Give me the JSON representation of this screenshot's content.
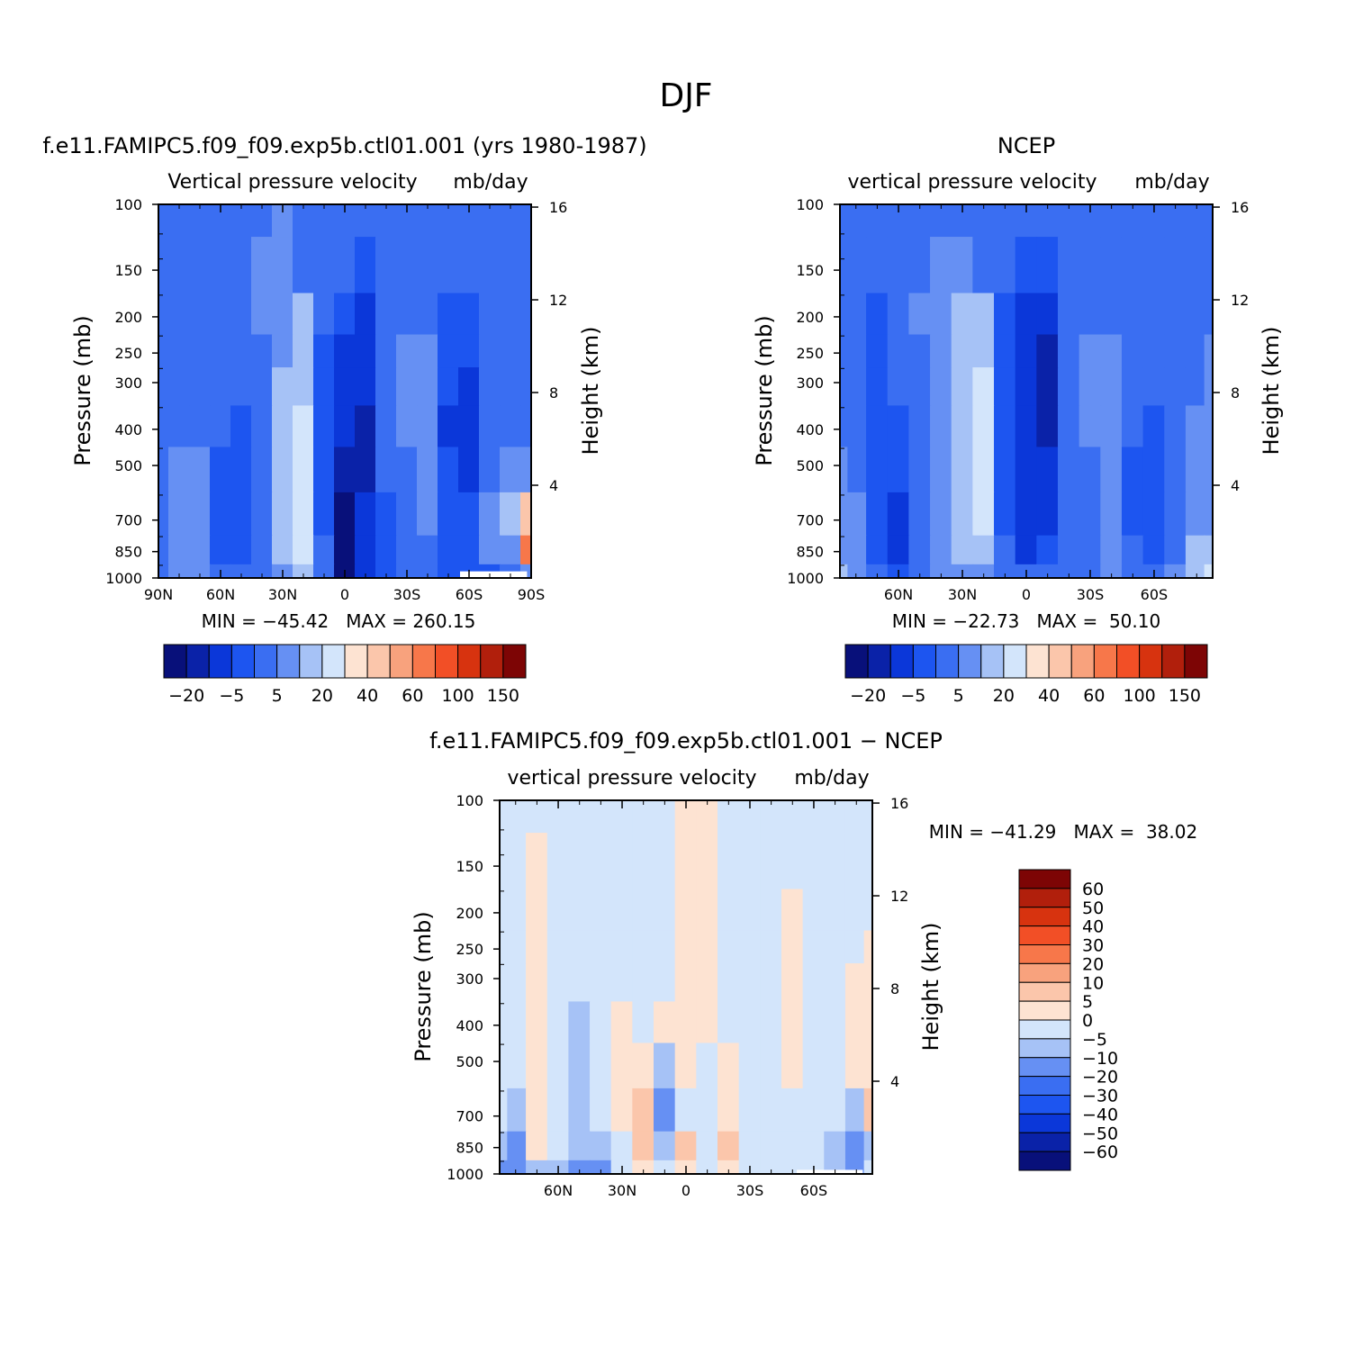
{
  "page_title": "DJF",
  "colors": {
    "model_obs_scale": [
      "#08107a",
      "#0a22a8",
      "#0b37d9",
      "#1d55f0",
      "#3a6ef2",
      "#6690f3",
      "#a6c2f6",
      "#d3e5fb",
      "#fde3d2",
      "#fbc6ab",
      "#f8a27d",
      "#f7774a",
      "#f24f26",
      "#d7330f",
      "#b11f0c",
      "#7d0505"
    ],
    "diff_scale": [
      "#08107a",
      "#0a22a8",
      "#0b37d9",
      "#1d55f0",
      "#3a6ef2",
      "#6690f3",
      "#a6c2f6",
      "#d3e5fb",
      "#fde3d2",
      "#fbc6ab",
      "#f8a27d",
      "#f7774a",
      "#f24f26",
      "#d7330f",
      "#b11f0c",
      "#7d0505"
    ],
    "missing": "#ffffff"
  },
  "chart_data": [
    {
      "type": "heatmap",
      "panel": "model",
      "title": "f.e11.FAMIPC5.f09_f09.exp5b.ctl01.001 (yrs 1980-1987)",
      "variable": "Vertical pressure velocity",
      "units": "mb/day",
      "ylabel": "Pressure (mb)",
      "ylabel_right": "Height (km)",
      "y_ticks": [
        "100",
        "150",
        "200",
        "250",
        "300",
        "400",
        "500",
        "700",
        "850",
        "1000"
      ],
      "y_right_ticks": [
        "16",
        "12",
        "8",
        "4"
      ],
      "x_ticks": [
        "90N",
        "60N",
        "30N",
        "0",
        "30S",
        "60S",
        "90S"
      ],
      "stats": "MIN = -45.42   MAX = 260.15",
      "colorbar_labels": [
        "-20",
        "-5",
        "5",
        "20",
        "40",
        "60",
        "100",
        "150"
      ],
      "contour_levels": [
        -30,
        -25,
        -20,
        -15,
        -10,
        -5,
        0,
        5,
        10,
        20,
        30,
        40,
        50,
        60,
        80,
        100,
        120,
        150
      ],
      "lat": [
        90,
        80,
        70,
        60,
        50,
        40,
        30,
        20,
        10,
        0,
        -10,
        -20,
        -30,
        -40,
        -50,
        -60,
        -70,
        -80,
        -90
      ],
      "pressure": [
        100,
        150,
        200,
        250,
        300,
        400,
        500,
        700,
        850,
        1000
      ],
      "values": [
        [
          -8,
          -8,
          -8,
          -8,
          -6,
          -6,
          -5,
          -8,
          -8,
          -8,
          -10,
          -9,
          -8,
          -9,
          -10,
          -10,
          -9,
          -8,
          -8
        ],
        [
          -9,
          -9,
          -8,
          -8,
          -6,
          -5,
          -4,
          -6,
          -8,
          -9,
          -12,
          -10,
          -8,
          -8,
          -10,
          -10,
          -9,
          -8,
          -8
        ],
        [
          -10,
          -10,
          -8,
          -7,
          -6,
          -5,
          -2,
          1,
          -10,
          -14,
          -16,
          -10,
          -6,
          -6,
          -12,
          -12,
          -9,
          -8,
          -8
        ],
        [
          -10,
          -10,
          -9,
          -8,
          -7,
          -8,
          -1,
          3,
          -12,
          -16,
          -18,
          -10,
          -4,
          -3,
          -12,
          -14,
          -10,
          -8,
          -8
        ],
        [
          -10,
          -10,
          -9,
          -9,
          -10,
          -9,
          0,
          4,
          -13,
          -18,
          -20,
          -10,
          -4,
          -2,
          -14,
          -16,
          -10,
          -8,
          -7
        ],
        [
          -9,
          -9,
          -9,
          -10,
          -12,
          -9,
          1,
          6,
          -14,
          -20,
          -22,
          -10,
          -5,
          -3,
          -16,
          -18,
          -9,
          -6,
          -6
        ],
        [
          -7,
          -5,
          -5,
          -11,
          -13,
          -8,
          2,
          7,
          -13,
          -24,
          -22,
          -10,
          -6,
          -4,
          -14,
          -16,
          -6,
          -4,
          -4
        ],
        [
          -6,
          -2,
          -2,
          -12,
          -14,
          -6,
          3,
          8,
          -14,
          -32,
          -20,
          -12,
          -7,
          -5,
          -13,
          -14,
          -4,
          0,
          20
        ],
        [
          -7,
          -3,
          -3,
          -12,
          -12,
          -7,
          1,
          6,
          -10,
          -38,
          -18,
          -15,
          -9,
          -7,
          -13,
          -14,
          -5,
          -4,
          40
        ],
        [
          -6,
          -4,
          -4,
          -10,
          -10,
          -8,
          -4,
          2,
          -8,
          -32,
          -20,
          -14,
          -10,
          -9,
          -12,
          -12,
          -12,
          -6,
          -4
        ]
      ],
      "missing_region": "approx 60S-90S, 1000-850 mb (partial)"
    },
    {
      "type": "heatmap",
      "panel": "observation",
      "title": "NCEP",
      "variable": "vertical pressure velocity",
      "units": "mb/day",
      "ylabel": "Pressure (mb)",
      "ylabel_right": "Height (km)",
      "y_ticks": [
        "100",
        "150",
        "200",
        "250",
        "300",
        "400",
        "500",
        "700",
        "850",
        "1000"
      ],
      "y_right_ticks": [
        "16",
        "12",
        "8",
        "4"
      ],
      "x_ticks": [
        "60N",
        "30N",
        "0",
        "30S",
        "60S"
      ],
      "stats": "MIN = -22.73   MAX =  50.10",
      "colorbar_labels": [
        "-20",
        "-5",
        "5",
        "20",
        "40",
        "60",
        "100",
        "150"
      ],
      "lat": [
        87.5,
        80,
        70,
        60,
        50,
        40,
        30,
        20,
        10,
        0,
        -10,
        -20,
        -30,
        -40,
        -50,
        -60,
        -70,
        -80,
        -87.5
      ],
      "pressure": [
        100,
        150,
        200,
        250,
        300,
        400,
        500,
        700,
        850,
        1000
      ],
      "values": [
        [
          -8,
          -8,
          -8,
          -8,
          -8,
          -8,
          -8,
          -8,
          -8,
          -8,
          -8,
          -8,
          -8,
          -8,
          -8,
          -8,
          -8,
          -8,
          -8
        ],
        [
          -8,
          -9,
          -10,
          -8,
          -6,
          -5,
          -3,
          -8,
          -10,
          -11,
          -14,
          -9,
          -7,
          -8,
          -8,
          -8,
          -8,
          -8,
          -8
        ],
        [
          -8,
          -10,
          -12,
          -8,
          -5,
          -4,
          0,
          3,
          -12,
          -16,
          -20,
          -10,
          -6,
          -6,
          -8,
          -8,
          -8,
          -6,
          -6
        ],
        [
          -8,
          -10,
          -13,
          -9,
          -6,
          -5,
          1,
          4,
          -14,
          -18,
          -22,
          -10,
          -5,
          -4,
          -8,
          -9,
          -8,
          -6,
          -5
        ],
        [
          -8,
          -10,
          -14,
          -10,
          -7,
          -5,
          2,
          5,
          -14,
          -18,
          -22,
          -10,
          -5,
          -3,
          -8,
          -10,
          -8,
          -6,
          -5
        ],
        [
          -6,
          -10,
          -14,
          -12,
          -8,
          -5,
          2,
          6,
          -12,
          -18,
          -22,
          -10,
          -5,
          -3,
          -10,
          -12,
          -8,
          -5,
          -4
        ],
        [
          -4,
          -8,
          -14,
          -14,
          -9,
          -5,
          2,
          7,
          -12,
          -18,
          -20,
          -10,
          -6,
          -4,
          -11,
          -13,
          -8,
          -4,
          -3
        ],
        [
          -3,
          -5,
          -14,
          -16,
          -9,
          -4,
          2,
          7,
          -12,
          -18,
          -18,
          -10,
          -6,
          -4,
          -11,
          -14,
          -8,
          -3,
          -2
        ],
        [
          -2,
          -4,
          -12,
          -16,
          -8,
          -4,
          0,
          4,
          -10,
          -20,
          -14,
          -8,
          -6,
          -4,
          -10,
          -12,
          -6,
          0,
          3
        ],
        [
          2,
          -3,
          -8,
          -12,
          -6,
          -4,
          -5,
          -3,
          -6,
          -10,
          -10,
          -8,
          -6,
          -4,
          -8,
          -10,
          -5,
          2,
          5
        ]
      ]
    },
    {
      "type": "heatmap",
      "panel": "difference",
      "title": "f.e11.FAMIPC5.f09_f09.exp5b.ctl01.001 - NCEP",
      "variable": "vertical pressure velocity",
      "units": "mb/day",
      "ylabel": "Pressure (mb)",
      "ylabel_right": "Height (km)",
      "y_ticks": [
        "100",
        "150",
        "200",
        "250",
        "300",
        "400",
        "500",
        "700",
        "850",
        "1000"
      ],
      "y_right_ticks": [
        "16",
        "12",
        "8",
        "4"
      ],
      "x_ticks": [
        "60N",
        "30N",
        "0",
        "30S",
        "60S"
      ],
      "stats": "MIN = -41.29   MAX =  38.02",
      "colorbar_labels": [
        "60",
        "50",
        "40",
        "30",
        "20",
        "10",
        "5",
        "0",
        "-5",
        "-10",
        "-20",
        "-30",
        "-40",
        "-50",
        "-60"
      ],
      "contour_levels": [
        -60,
        -50,
        -40,
        -30,
        -20,
        -10,
        -5,
        0,
        5,
        10,
        20,
        30,
        40,
        50,
        60
      ],
      "lat": [
        87.5,
        80,
        70,
        60,
        50,
        40,
        30,
        20,
        10,
        0,
        -10,
        -20,
        -30,
        -40,
        -50,
        -60,
        -70,
        -80,
        -87.5
      ],
      "pressure": [
        100,
        150,
        200,
        250,
        300,
        400,
        500,
        700,
        850,
        1000
      ],
      "values": [
        [
          -2,
          -2,
          -2,
          -2,
          -2,
          -2,
          -2,
          -2,
          -2,
          2,
          2,
          -2,
          -2,
          -2,
          -2,
          -2,
          -2,
          -2,
          -2
        ],
        [
          -2,
          -2,
          2,
          -2,
          -2,
          -2,
          -2,
          -2,
          -3,
          2,
          2,
          -2,
          -2,
          -2,
          -2,
          -2,
          -2,
          -2,
          -2
        ],
        [
          -2,
          -2,
          2,
          -2,
          -2,
          -2,
          -2,
          -2,
          -2,
          2,
          2,
          -2,
          -2,
          -2,
          2,
          -2,
          -2,
          -2,
          -2
        ],
        [
          -2,
          -2,
          2,
          -2,
          -3,
          -2,
          -2,
          -2,
          -2,
          2,
          2,
          -2,
          -2,
          -2,
          2,
          -2,
          -2,
          -2,
          2
        ],
        [
          -2,
          -2,
          2,
          -2,
          -4,
          -2,
          -2,
          -2,
          -2,
          2,
          2,
          -2,
          -2,
          -2,
          2,
          -2,
          -2,
          2,
          2
        ],
        [
          -2,
          -2,
          2,
          -2,
          -6,
          -3,
          2,
          -2,
          2,
          2,
          2,
          -2,
          -2,
          -2,
          2,
          -2,
          -2,
          2,
          2
        ],
        [
          -2,
          -2,
          2,
          -2,
          -7,
          -4,
          2,
          2,
          -6,
          2,
          -2,
          2,
          -2,
          -2,
          2,
          -2,
          -2,
          2,
          2
        ],
        [
          -3,
          -6,
          2,
          -2,
          -8,
          -5,
          4,
          6,
          -12,
          -3,
          -2,
          4,
          -2,
          -2,
          -2,
          -2,
          -4,
          -6,
          6
        ],
        [
          -10,
          -14,
          2,
          -4,
          -10,
          -8,
          -2,
          8,
          -6,
          6,
          -3,
          6,
          -2,
          -2,
          -2,
          -2,
          -10,
          -14,
          -6
        ],
        [
          -14,
          -18,
          -6,
          -10,
          -12,
          -16,
          -2,
          2,
          -3,
          2,
          -2,
          2,
          -2,
          -2,
          -2,
          -2,
          -6,
          -14,
          -4
        ]
      ],
      "missing_region": "approx 55S-85S near 1000 mb"
    }
  ]
}
